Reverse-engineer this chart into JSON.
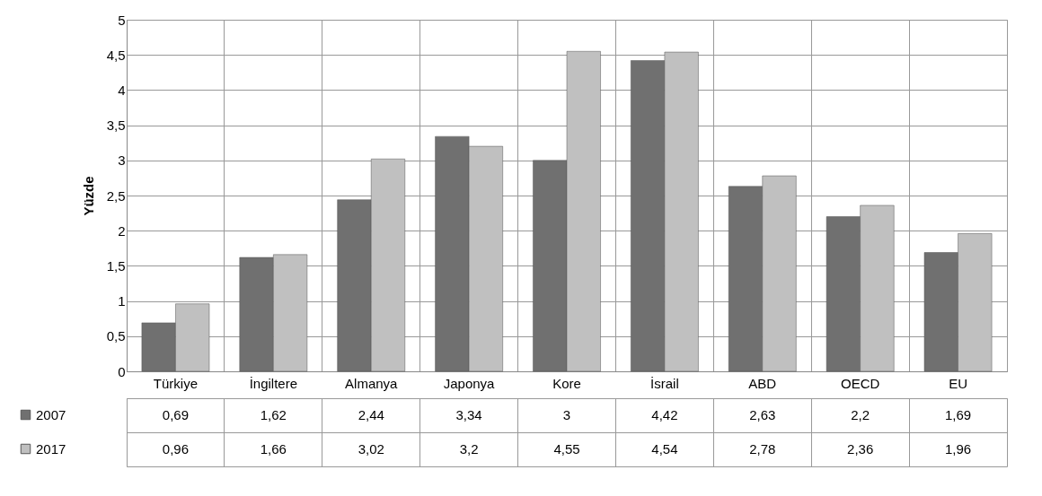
{
  "chart_data": {
    "type": "bar",
    "ylabel": "Yüzde",
    "categories": [
      "Türkiye",
      "İngiltere",
      "Almanya",
      "Japonya",
      "Kore",
      "İsrail",
      "ABD",
      "OECD",
      "EU"
    ],
    "series": [
      {
        "name": "2007",
        "color": "#707070",
        "values": [
          0.69,
          1.62,
          2.44,
          3.34,
          3,
          4.42,
          2.63,
          2.2,
          1.69
        ],
        "value_labels": [
          "0,69",
          "1,62",
          "2,44",
          "3,34",
          "3",
          "4,42",
          "2,63",
          "2,2",
          "1,69"
        ]
      },
      {
        "name": "2017",
        "color": "#c0c0c0",
        "values": [
          0.96,
          1.66,
          3.02,
          3.2,
          4.55,
          4.54,
          2.78,
          2.36,
          1.96
        ],
        "value_labels": [
          "0,96",
          "1,66",
          "3,02",
          "3,2",
          "4,55",
          "4,54",
          "2,78",
          "2,36",
          "1,96"
        ]
      }
    ],
    "ylim": [
      0,
      5
    ],
    "yticks": [
      0,
      {
        "value": 0.5,
        "label": "0,5"
      },
      1,
      {
        "value": 1.5,
        "label": "1,5"
      },
      2,
      {
        "value": 2.5,
        "label": "2,5"
      },
      3,
      {
        "value": 3.5,
        "label": "3,5"
      },
      4,
      {
        "value": 4.5,
        "label": "4,5"
      },
      5
    ],
    "grid": "y",
    "legend": "bottom left"
  }
}
